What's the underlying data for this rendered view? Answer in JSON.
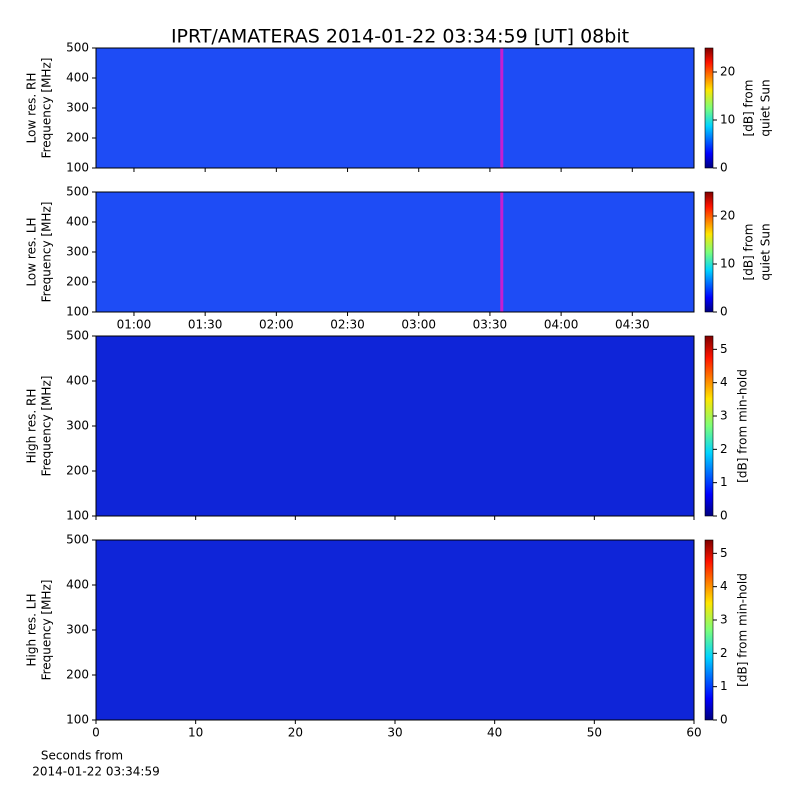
{
  "title": "IPRT/AMATERAS 2014-01-22 03:34:59 [UT]   08bit",
  "chart_data": [
    {
      "type": "heatmap",
      "ylabel": [
        "Low res. RH",
        "Frequency [MHz]"
      ],
      "color": "#1e4cf5",
      "ylim": [
        100,
        500
      ],
      "yticks": [
        100,
        200,
        300,
        400,
        500
      ],
      "xlim": [
        44,
        296
      ],
      "marker_x": 215,
      "marker_color": "#c51fd0",
      "colorbar": {
        "label": [
          "[dB] from",
          "quiet Sun"
        ],
        "lim": [
          0,
          25
        ],
        "ticks": [
          0,
          10,
          20
        ]
      }
    },
    {
      "type": "heatmap",
      "ylabel": [
        "Low res. LH",
        "Frequency [MHz]"
      ],
      "color": "#1e4cf5",
      "ylim": [
        100,
        500
      ],
      "yticks": [
        100,
        200,
        300,
        400,
        500
      ],
      "xlim": [
        44,
        296
      ],
      "xticks": [
        {
          "value": 60,
          "label": "01:00"
        },
        {
          "value": 90,
          "label": "01:30"
        },
        {
          "value": 120,
          "label": "02:00"
        },
        {
          "value": 150,
          "label": "02:30"
        },
        {
          "value": 180,
          "label": "03:00"
        },
        {
          "value": 210,
          "label": "03:30"
        },
        {
          "value": 240,
          "label": "04:00"
        },
        {
          "value": 270,
          "label": "04:30"
        }
      ],
      "marker_x": 215,
      "marker_color": "#c51fd0",
      "colorbar": {
        "label": [
          "[dB] from",
          "quiet Sun"
        ],
        "lim": [
          0,
          25
        ],
        "ticks": [
          0,
          10,
          20
        ]
      }
    },
    {
      "type": "heatmap",
      "ylabel": [
        "High res. RH",
        "Frequency [MHz]"
      ],
      "color": "#0f25d8",
      "ylim": [
        100,
        500
      ],
      "yticks": [
        100,
        200,
        300,
        400,
        500
      ],
      "xlim": [
        0,
        60
      ],
      "colorbar": {
        "label": [
          "[dB] from min-hold"
        ],
        "lim": [
          0,
          5.4
        ],
        "ticks": [
          0,
          1,
          2,
          3,
          4,
          5
        ]
      }
    },
    {
      "type": "heatmap",
      "ylabel": [
        "High res. LH",
        "Frequency [MHz]"
      ],
      "color": "#0f25d8",
      "ylim": [
        100,
        500
      ],
      "yticks": [
        100,
        200,
        300,
        400,
        500
      ],
      "xlim": [
        0,
        60
      ],
      "xticks": [
        0,
        10,
        20,
        30,
        40,
        50,
        60
      ],
      "xlabel": [
        "Seconds from",
        "2014-01-22 03:34:59"
      ],
      "colorbar": {
        "label": [
          "[dB] from min-hold"
        ],
        "lim": [
          0,
          5.4
        ],
        "ticks": [
          0,
          1,
          2,
          3,
          4,
          5
        ]
      }
    }
  ]
}
